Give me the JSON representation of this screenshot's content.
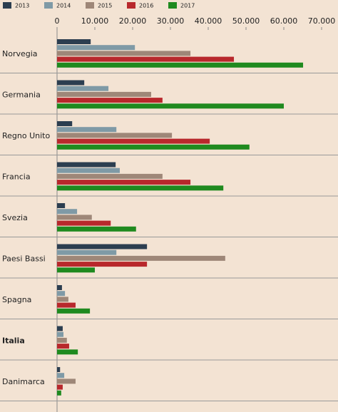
{
  "chart_data": {
    "type": "hbar",
    "categories": [
      "Norvegia",
      "Germania",
      "Regno Unito",
      "Francia",
      "Svezia",
      "Paesi Bassi",
      "Spagna",
      "Italia",
      "Danimarca"
    ],
    "series": [
      {
        "name": "2013",
        "color": "#2c3e50",
        "values": [
          8900,
          7200,
          4000,
          15500,
          2100,
          23800,
          1300,
          1500,
          800
        ]
      },
      {
        "name": "2014",
        "color": "#7f9aa6",
        "values": [
          20600,
          13600,
          15700,
          16600,
          5300,
          15700,
          2100,
          1700,
          1900
        ]
      },
      {
        "name": "2015",
        "color": "#9e8778",
        "values": [
          35300,
          24900,
          30400,
          27900,
          9200,
          44500,
          3000,
          2600,
          4900
        ]
      },
      {
        "name": "2016",
        "color": "#b8282c",
        "values": [
          46800,
          27900,
          40400,
          35300,
          14200,
          23800,
          4900,
          3200,
          1500
        ]
      },
      {
        "name": "2017",
        "color": "#1f8a1f",
        "values": [
          65100,
          60000,
          50900,
          44000,
          20900,
          10000,
          8700,
          5500,
          1100
        ]
      }
    ],
    "xlim": [
      0,
      70000
    ],
    "xticks": [
      0,
      {
        "value": 10000,
        "label": "10.000"
      },
      {
        "value": 20000,
        "label": "20.000"
      },
      {
        "value": 30000,
        "label": "30.000"
      },
      {
        "value": 40000,
        "label": "40.000"
      },
      {
        "value": 50000,
        "label": "50.000"
      },
      {
        "value": 60000,
        "label": "60.000"
      },
      {
        "value": 70000,
        "label": "70.000"
      }
    ],
    "legend": "top-left"
  }
}
